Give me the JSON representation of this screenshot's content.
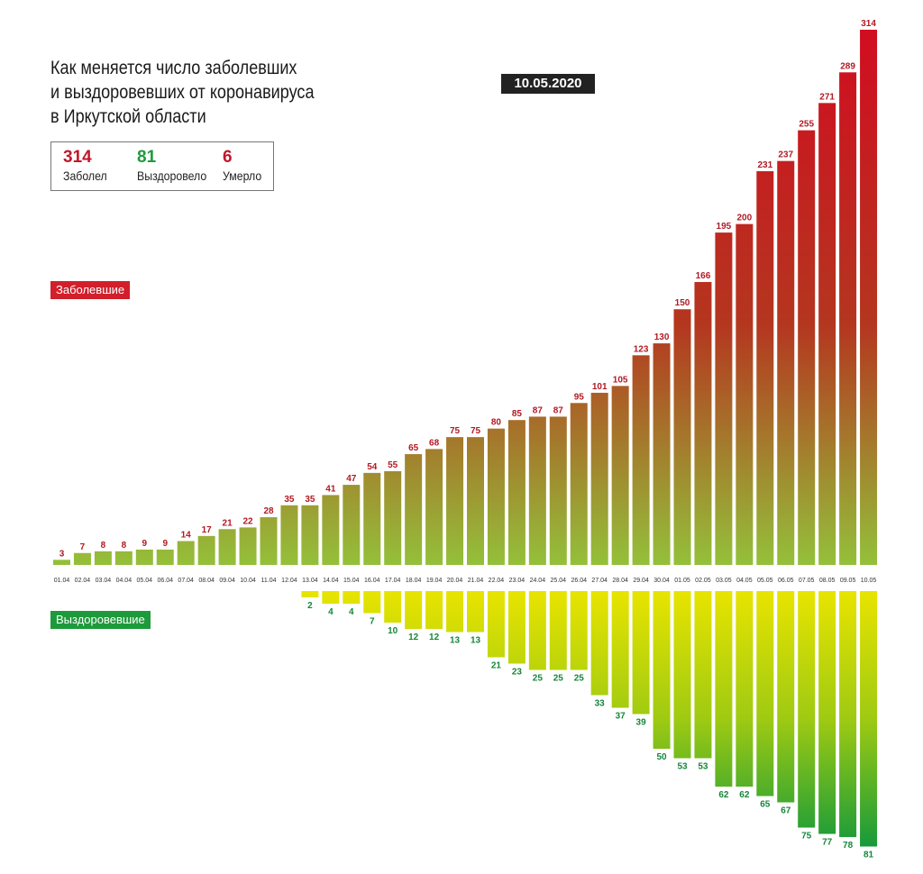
{
  "title": {
    "lines": [
      "Как меняется число заболевших",
      "и выздоровевших от коронавируса",
      "в Иркутской области"
    ]
  },
  "date": "10.05.2020",
  "stats": [
    {
      "value": "314",
      "label": "Заболел",
      "color": "#c0182a"
    },
    {
      "value": "81",
      "label": "Выздоровело",
      "color": "#1f9a3c"
    },
    {
      "value": "6",
      "label": "Умерло",
      "color": "#c0182a"
    }
  ],
  "legend": {
    "infected": {
      "label": "Заболевшие",
      "color": "#d11f2b"
    },
    "recovered": {
      "label": "Выздоровевшие",
      "color": "#1d9a3b"
    }
  },
  "colors": {
    "infected_top": "#d10d21",
    "infected_bottom": "#94c03a",
    "recovered_top": "#e8e400",
    "recovered_bottom": "#179a3a",
    "infected_label": "#b01a24",
    "recovered_label": "#15863a",
    "date_label": "#333333"
  },
  "chart_data": {
    "type": "bar",
    "categories": [
      "01.04",
      "02.04",
      "03.04",
      "04.04",
      "05.04",
      "06.04",
      "07.04",
      "08.04",
      "09.04",
      "10.04",
      "11.04",
      "12.04",
      "13.04",
      "14.04",
      "15.04",
      "16.04",
      "17.04",
      "18.04",
      "19.04",
      "20.04",
      "21.04",
      "22.04",
      "23.04",
      "24.04",
      "25.04",
      "26.04",
      "27.04",
      "28.04",
      "29.04",
      "30.04",
      "01.05",
      "02.05",
      "03.05",
      "04.05",
      "05.05",
      "06.05",
      "07.05",
      "08.05",
      "09.05",
      "10.05"
    ],
    "series": [
      {
        "name": "Заболевшие",
        "values": [
          3,
          7,
          8,
          8,
          9,
          9,
          14,
          17,
          21,
          22,
          28,
          35,
          35,
          41,
          47,
          54,
          55,
          65,
          68,
          75,
          75,
          80,
          85,
          87,
          87,
          95,
          101,
          105,
          123,
          130,
          150,
          166,
          195,
          200,
          231,
          237,
          255,
          271,
          289,
          314
        ]
      },
      {
        "name": "Выздоровевшие",
        "values": [
          null,
          null,
          null,
          null,
          null,
          null,
          null,
          null,
          null,
          null,
          null,
          null,
          2,
          4,
          4,
          7,
          10,
          12,
          12,
          13,
          13,
          21,
          23,
          25,
          25,
          25,
          33,
          37,
          39,
          50,
          53,
          53,
          62,
          62,
          65,
          67,
          75,
          77,
          78,
          81
        ]
      }
    ],
    "ylim": [
      0,
      314
    ]
  }
}
